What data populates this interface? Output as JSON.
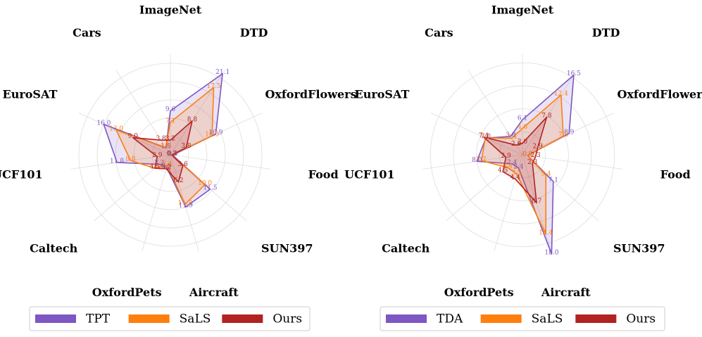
{
  "chart_data": [
    {
      "type": "radar",
      "categories": [
        "ImageNet",
        "DTD",
        "OxfordFlowers",
        "Food",
        "SUN397",
        "Aircraft",
        "OxfordPets",
        "Caltech",
        "UCF101",
        "EuroSAT",
        "Cars"
      ],
      "rmax": 22,
      "rings": [
        4,
        8,
        12,
        16,
        20
      ],
      "grid": true,
      "legend_position": "bottom",
      "series": [
        {
          "name": "TPT",
          "color": "#7e57c2",
          "values": [
            9.6,
            21.1,
            10.9,
            0.5,
            11.5,
            11.9,
            2.9,
            3.2,
            11.8,
            16.0,
            1.8
          ]
        },
        {
          "name": "SaLS",
          "color": "#ff7f0e",
          "values": [
            7.1,
            17.5,
            10.0,
            0.3,
            10.0,
            11.3,
            2.4,
            4.5,
            8.8,
            13.0,
            1.9
          ]
        },
        {
          "name": "Ours",
          "color": "#b22222",
          "values": [
            3.2,
            8.8,
            3.8,
            0.3,
            3.6,
            6.2,
            3.2,
            4.5,
            2.9,
            9.0,
            3.8
          ]
        }
      ]
    },
    {
      "type": "radar",
      "categories": [
        "ImageNet",
        "DTD",
        "OxfordFlowers",
        "Food",
        "SUN397",
        "Aircraft",
        "OxfordPets",
        "Caltech",
        "UCF101",
        "EuroSAT",
        "Cars"
      ],
      "rmax": 17.5,
      "rings": [
        4,
        8,
        12,
        16
      ],
      "grid": true,
      "legend_position": "bottom",
      "series": [
        {
          "name": "TDA",
          "color": "#7e57c2",
          "values": [
            6.1,
            16.5,
            8.9,
            0.9,
            7.1,
            18.0,
            2.4,
            2.4,
            8.0,
            7.0,
            3.8
          ]
        },
        {
          "name": "SaLS",
          "color": "#ff7f0e",
          "values": [
            4.6,
            12.4,
            7.8,
            0.9,
            5.4,
            14.4,
            3.5,
            3.4,
            7.2,
            7.1,
            3.4
          ]
        },
        {
          "name": "Ours",
          "color": "#b22222",
          "values": [
            2.0,
            7.8,
            2.9,
            2.3,
            2.3,
            8.7,
            4.4,
            4.5,
            2.9,
            7.4,
            2.0
          ]
        }
      ]
    }
  ]
}
